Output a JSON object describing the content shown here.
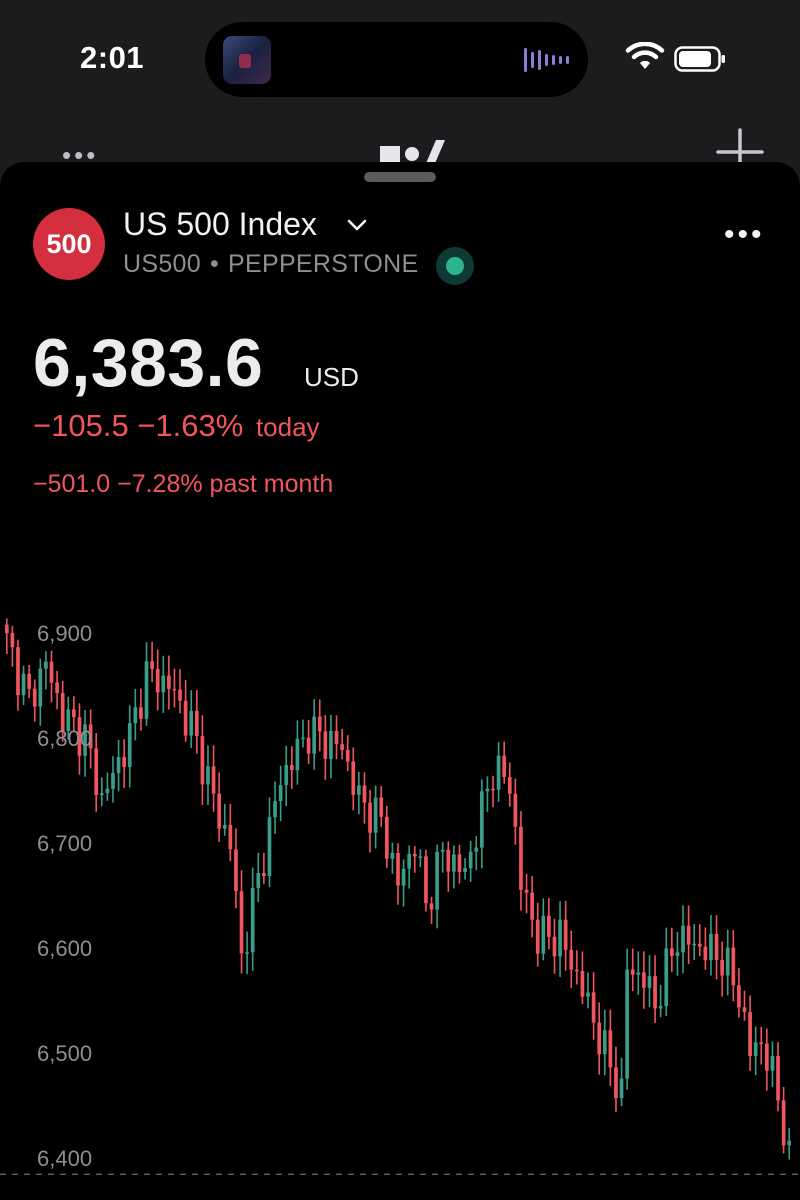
{
  "status_bar": {
    "time": "2:01"
  },
  "symbol": {
    "badge": "500",
    "name": "US 500 Index",
    "ticker": "US500",
    "separator": "•",
    "exchange": "PEPPERSTONE",
    "market_status": "open"
  },
  "quote": {
    "price": "6,383.6",
    "currency": "USD",
    "change_today": "−105.5",
    "change_today_pct": "−1.63%",
    "today_label": "today",
    "change_month": "−501.0 −7.28% past month"
  },
  "colors": {
    "up": "#3a9d88",
    "down": "#f0565c",
    "badge": "#d32f3f",
    "background": "#000000"
  },
  "icons": [
    "wifi-icon",
    "battery-icon",
    "more-icon",
    "logo-icon",
    "plus-icon",
    "chevron-down-icon"
  ],
  "chart_data": {
    "type": "candlestick",
    "y_ticks": [
      "6,900",
      "6,800",
      "6,700",
      "6,600",
      "6,500",
      "6,400"
    ],
    "y_tick_values": [
      6900,
      6800,
      6700,
      6600,
      6500,
      6400
    ],
    "ylim": [
      6385,
      6905
    ],
    "last_price": 6383.6,
    "keyframes": [
      [
        0,
        6890
      ],
      [
        4,
        6835
      ],
      [
        7,
        6870
      ],
      [
        10,
        6820
      ],
      [
        14,
        6800
      ],
      [
        17,
        6740
      ],
      [
        22,
        6800
      ],
      [
        25,
        6860
      ],
      [
        29,
        6850
      ],
      [
        33,
        6810
      ],
      [
        36,
        6760
      ],
      [
        38,
        6722
      ],
      [
        40,
        6700
      ],
      [
        42,
        6590
      ],
      [
        44,
        6640
      ],
      [
        49,
        6760
      ],
      [
        54,
        6805
      ],
      [
        56,
        6800
      ],
      [
        60,
        6790
      ],
      [
        63,
        6740
      ],
      [
        67,
        6720
      ],
      [
        70,
        6660
      ],
      [
        73,
        6700
      ],
      [
        75,
        6640
      ],
      [
        78,
        6690
      ],
      [
        82,
        6670
      ],
      [
        87,
        6770
      ],
      [
        90,
        6756
      ],
      [
        92,
        6660
      ],
      [
        95,
        6610
      ],
      [
        99,
        6610
      ],
      [
        103,
        6560
      ],
      [
        107,
        6500
      ],
      [
        110,
        6460
      ],
      [
        111,
        6580
      ],
      [
        114,
        6570
      ],
      [
        116,
        6545
      ],
      [
        120,
        6610
      ],
      [
        124,
        6600
      ],
      [
        128,
        6590
      ],
      [
        131,
        6555
      ],
      [
        133,
        6500
      ],
      [
        135,
        6510
      ],
      [
        138,
        6460
      ],
      [
        140,
        6395
      ]
    ]
  }
}
